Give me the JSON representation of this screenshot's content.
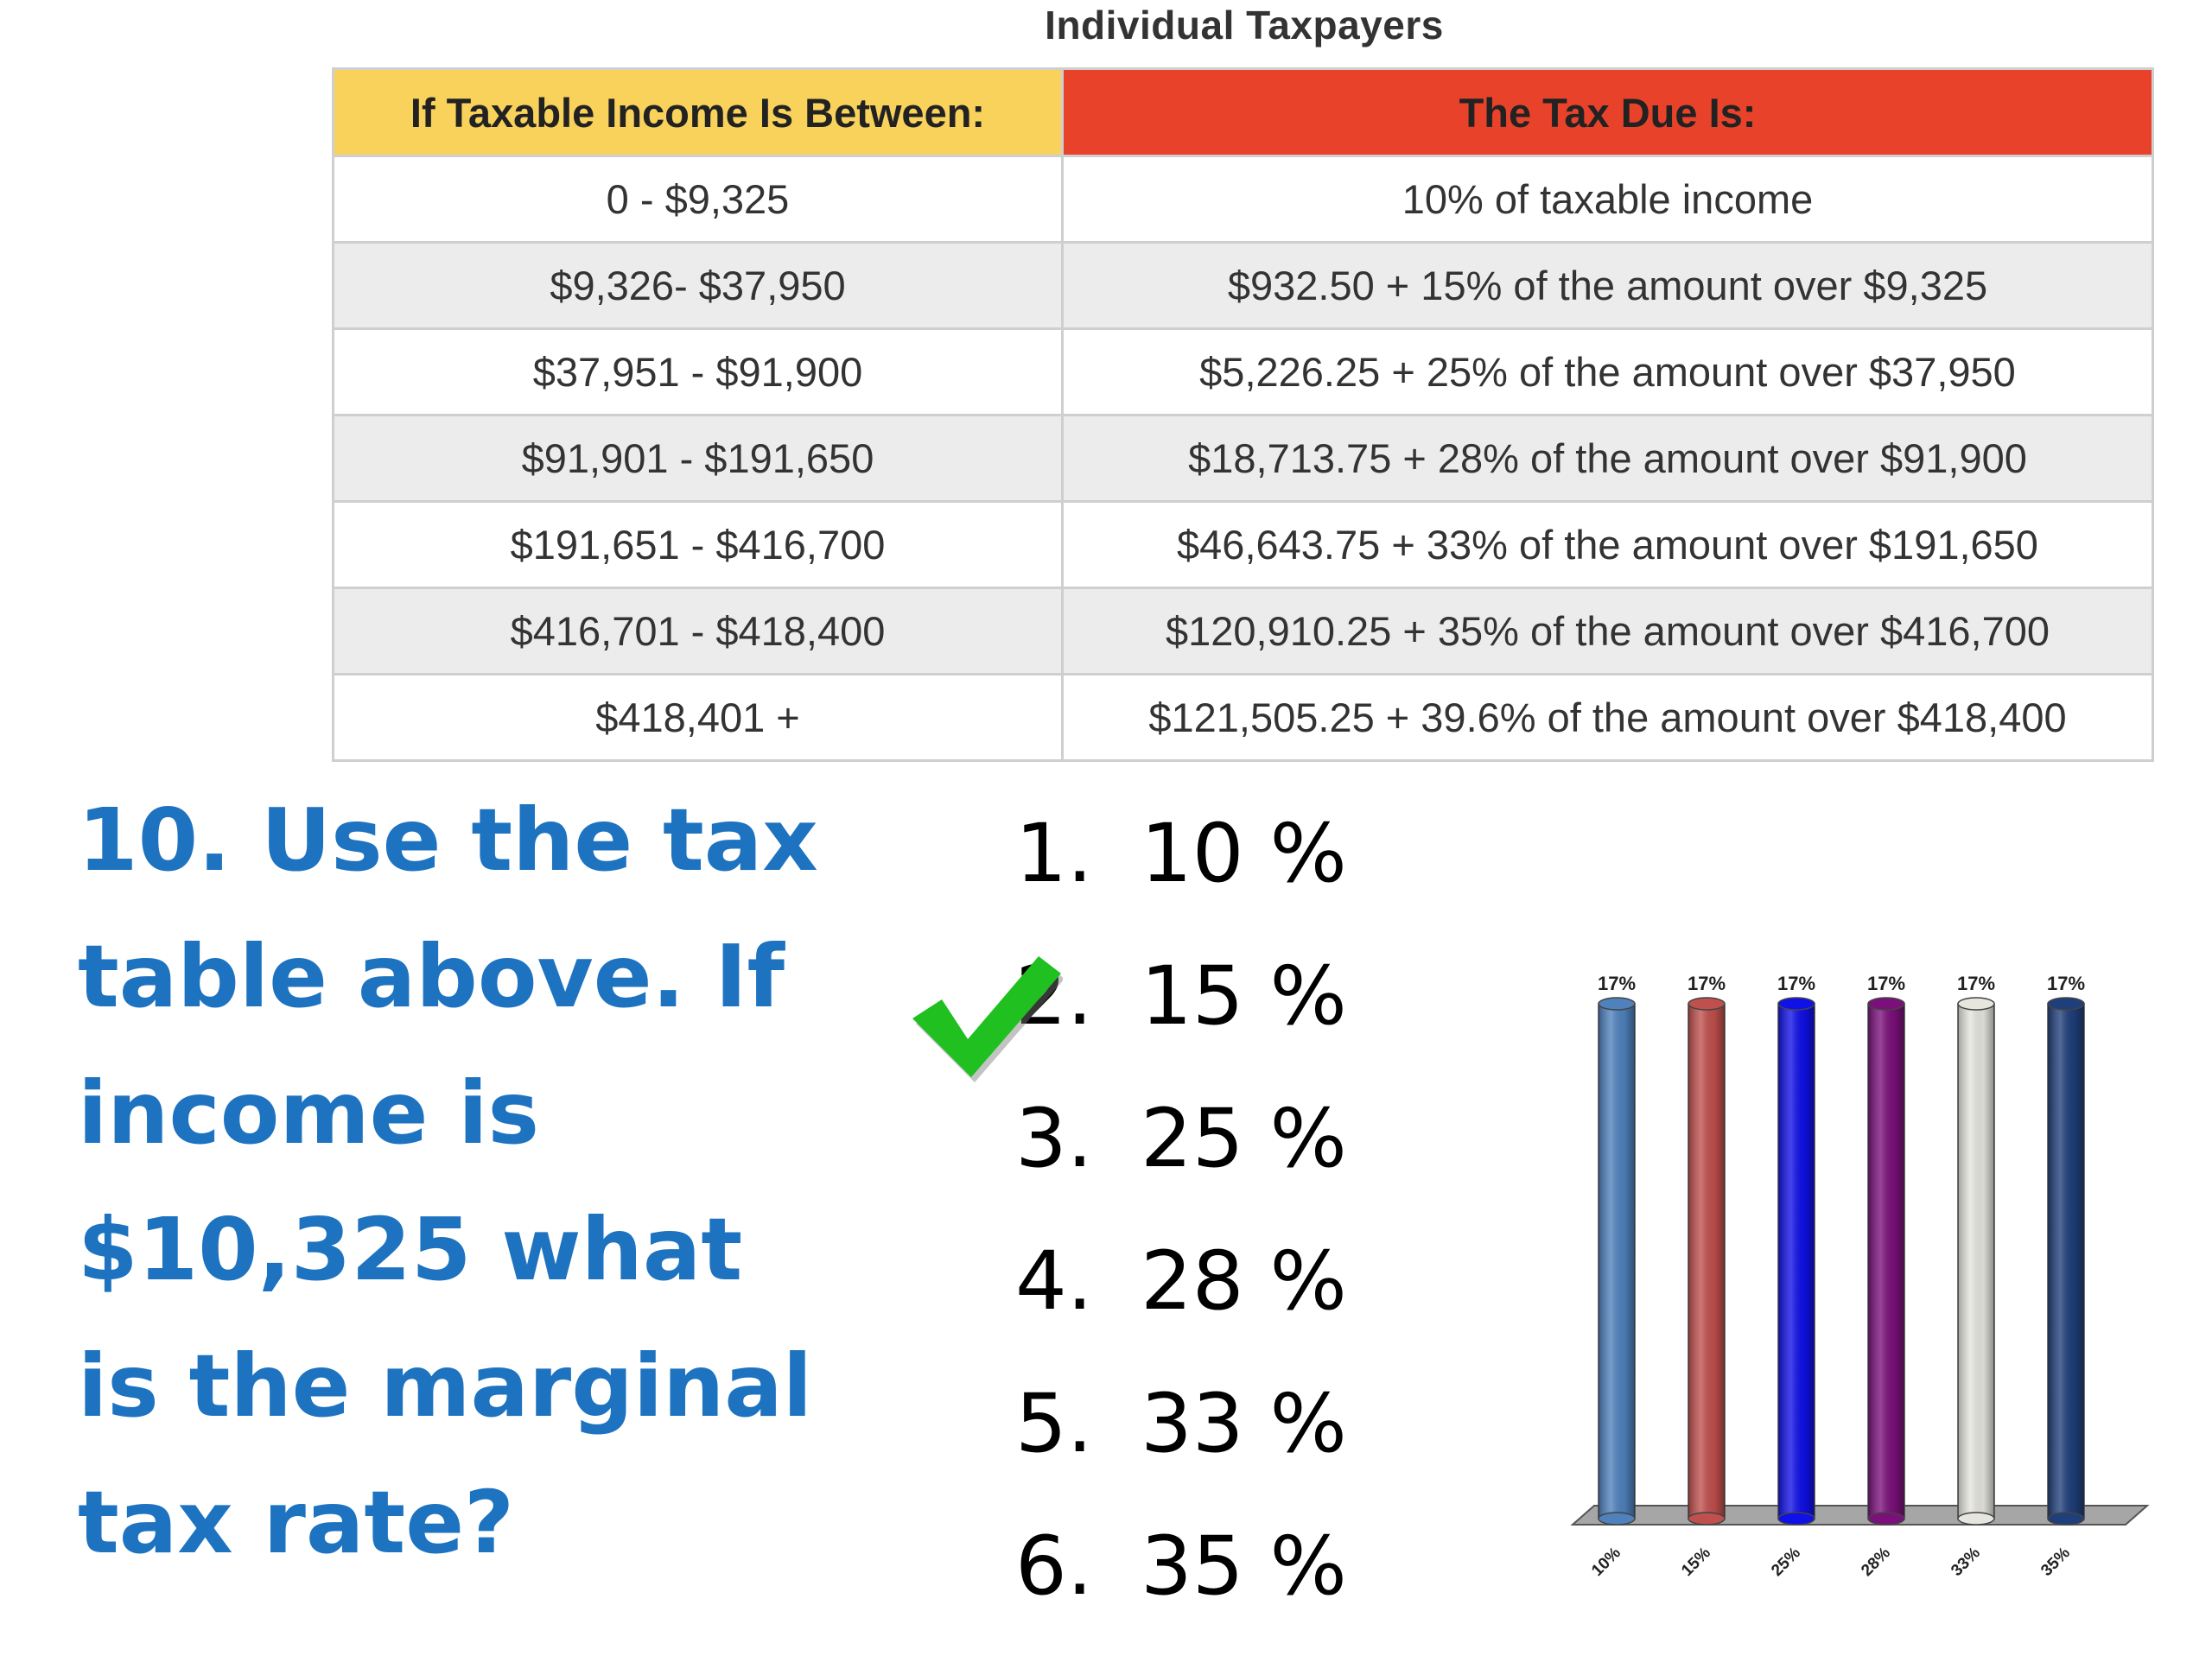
{
  "table": {
    "title": "Individual Taxpayers",
    "headers": [
      "If Taxable Income Is Between:",
      "The Tax Due Is:"
    ],
    "rows": [
      [
        "0 - $9,325",
        "10% of taxable income"
      ],
      [
        "$9,326- $37,950",
        "$932.50 + 15% of the amount over $9,325"
      ],
      [
        "$37,951 - $91,900",
        "$5,226.25 + 25% of the amount over $37,950"
      ],
      [
        "$91,901 - $191,650",
        "$18,713.75 + 28% of the amount over $91,900"
      ],
      [
        "$191,651 - $416,700",
        "$46,643.75 + 33% of the amount over $191,650"
      ],
      [
        "$416,701 - $418,400",
        "$120,910.25 + 35% of the amount over $416,700"
      ],
      [
        "$418,401 +",
        "$121,505.25 + 39.6%  of the amount over $418,400"
      ]
    ],
    "colors": {
      "header_left": "#f9d25c",
      "header_right": "#e8432a",
      "row_alt": "#ececec"
    }
  },
  "question": {
    "lines": [
      "10. Use the tax",
      "table above. If",
      "income is",
      "$10,325 what",
      "is the marginal",
      "tax rate?"
    ],
    "color": "#1e73c0"
  },
  "choices": [
    {
      "num": "1.",
      "label": "10 %",
      "correct": false
    },
    {
      "num": "2.",
      "label": "15 %",
      "correct": true
    },
    {
      "num": "3.",
      "label": "25 %",
      "correct": false
    },
    {
      "num": "4.",
      "label": "28 %",
      "correct": false
    },
    {
      "num": "5.",
      "label": "33 %",
      "correct": false
    },
    {
      "num": "6.",
      "label": "35 %",
      "correct": false
    }
  ],
  "correct_mark_icon": "checkmark-icon",
  "chart_data": {
    "type": "bar",
    "title": "",
    "xlabel": "",
    "ylabel": "",
    "categories": [
      "10%",
      "15%",
      "25%",
      "28%",
      "33%",
      "35%"
    ],
    "values": [
      17,
      17,
      17,
      17,
      17,
      17
    ],
    "data_labels": [
      "17%",
      "17%",
      "17%",
      "17%",
      "17%",
      "17%"
    ],
    "ylim": [
      0,
      17
    ],
    "grid": false,
    "legend": "none",
    "style": "3d-cylinder",
    "colors": [
      "#4f81bd",
      "#c0504d",
      "#1010e8",
      "#7b107b",
      "#e6e6df",
      "#1f3f7a"
    ]
  }
}
